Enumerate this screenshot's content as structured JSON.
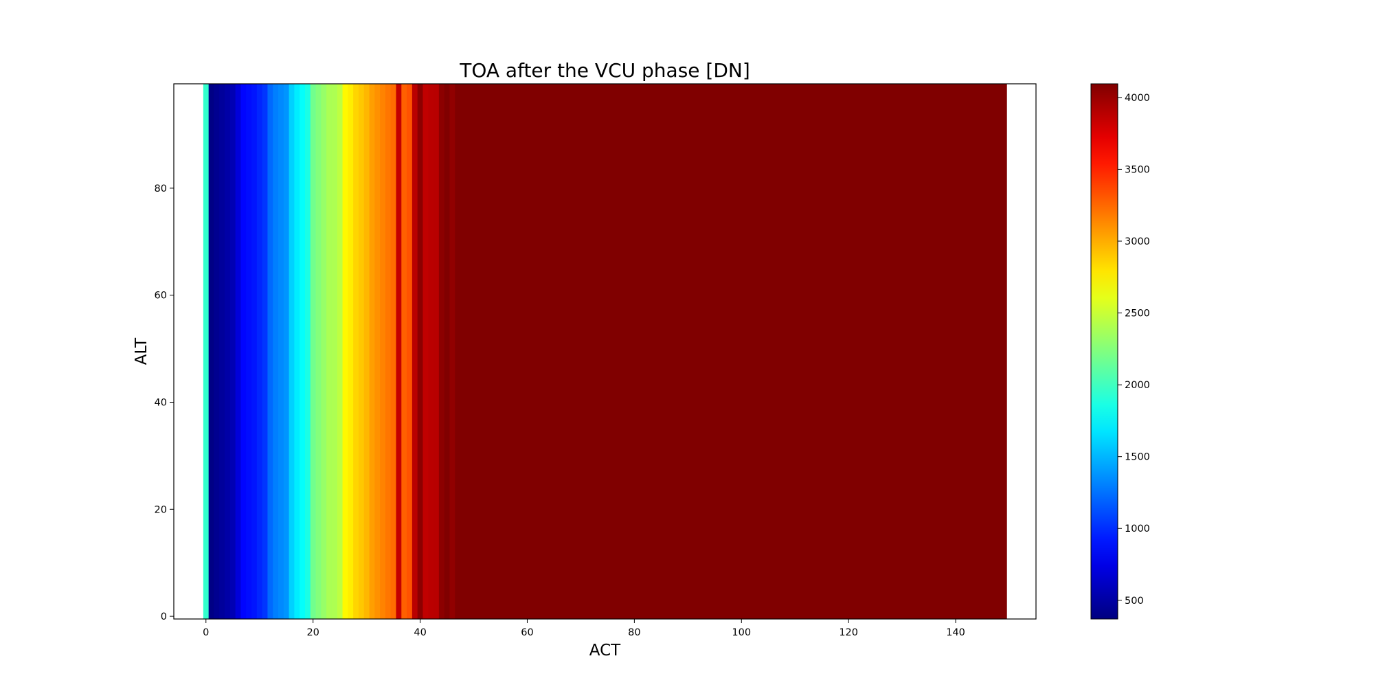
{
  "chart_data": {
    "type": "heatmap",
    "title": "TOA after the VCU phase [DN]",
    "xlabel": "ACT",
    "ylabel": "ALT",
    "xlim": [
      -6,
      155
    ],
    "ylim": [
      -0.5,
      99.5
    ],
    "x_ticks": [
      0,
      20,
      40,
      60,
      80,
      100,
      120,
      140
    ],
    "y_ticks": [
      0,
      20,
      40,
      60,
      80
    ],
    "colormap": "jet",
    "colorbar": {
      "min": 370,
      "max": 4095,
      "ticks": [
        500,
        1000,
        1500,
        2000,
        2500,
        3000,
        3500,
        4000
      ]
    },
    "grid": false,
    "columns_note_rows": "each column value is constant for all rows 0-99",
    "column_values": [
      1950,
      390,
      430,
      470,
      510,
      560,
      700,
      850,
      880,
      910,
      970,
      1030,
      1220,
      1300,
      1340,
      1380,
      1600,
      1700,
      1780,
      1860,
      2180,
      2250,
      2320,
      2390,
      2400,
      2460,
      2720,
      2760,
      2850,
      2900,
      2960,
      3050,
      3100,
      3150,
      3200,
      3230,
      3850,
      3280,
      3330,
      3880,
      4050,
      3860,
      3880,
      3890,
      4050,
      4095,
      4030,
      4095,
      4095,
      4095,
      4095,
      4095,
      4095,
      4095,
      4095,
      4095,
      4095,
      4095,
      4095,
      4095,
      4095,
      4095,
      4095,
      4095,
      4095,
      4095,
      4095,
      4095,
      4095,
      4095,
      4095,
      4095,
      4095,
      4095,
      4095,
      4095,
      4095,
      4095,
      4095,
      4095,
      4095,
      4095,
      4095,
      4095,
      4095,
      4095,
      4095,
      4095,
      4095,
      4095,
      4095,
      4095,
      4095,
      4095,
      4095,
      4095,
      4095,
      4095,
      4095,
      4095,
      4095,
      4095,
      4095,
      4095,
      4095,
      4095,
      4095,
      4095,
      4095,
      4095,
      4095,
      4095,
      4095,
      4095,
      4095,
      4095,
      4095,
      4095,
      4095,
      4095,
      4095,
      4095,
      4095,
      4095,
      4095,
      4095,
      4095,
      4095,
      4095,
      4095,
      4095,
      4095,
      4095,
      4095,
      4095,
      4095,
      4095,
      4095,
      4095,
      4095,
      4095,
      4095,
      4095,
      4095,
      4095,
      4095,
      4095,
      4095,
      4095,
      4095
    ]
  }
}
